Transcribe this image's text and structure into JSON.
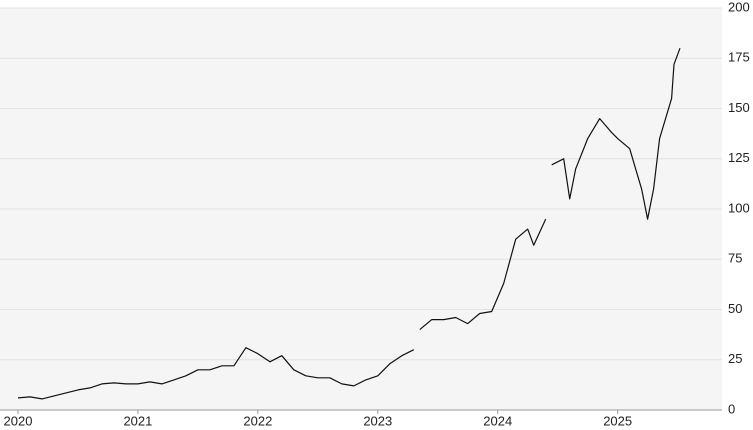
{
  "chart_data": {
    "type": "line",
    "x": [
      2020.0,
      2020.1,
      2020.2,
      2020.3,
      2020.4,
      2020.5,
      2020.6,
      2020.7,
      2020.8,
      2020.9,
      2021.0,
      2021.1,
      2021.2,
      2021.3,
      2021.4,
      2021.5,
      2021.6,
      2021.7,
      2021.8,
      2021.9,
      2022.0,
      2022.1,
      2022.2,
      2022.3,
      2022.4,
      2022.5,
      2022.6,
      2022.7,
      2022.8,
      2022.9,
      2023.0,
      2023.1,
      2023.2,
      2023.3,
      2023.32,
      2023.35,
      2023.45,
      2023.55,
      2023.65,
      2023.75,
      2023.85,
      2023.95,
      2024.05,
      2024.15,
      2024.25,
      2024.3,
      2024.4,
      2024.42,
      2024.45,
      2024.55,
      2024.6,
      2024.65,
      2024.75,
      2024.85,
      2024.95,
      2025.0,
      2025.1,
      2025.15,
      2025.2,
      2025.25,
      2025.3,
      2025.35,
      2025.45,
      2025.47,
      2025.52
    ],
    "series": [
      {
        "color": "#111111",
        "values": [
          6,
          6.5,
          5.5,
          7,
          8.5,
          10,
          11,
          13,
          13.5,
          13,
          13,
          14,
          13,
          15,
          17,
          20,
          20,
          22,
          22,
          31,
          28,
          24,
          27,
          20,
          17,
          16,
          16,
          13,
          12,
          15,
          17,
          23,
          27,
          30,
          null,
          40,
          45,
          45,
          46,
          43,
          48,
          49,
          63,
          85,
          90,
          82,
          95,
          null,
          122,
          125,
          105,
          120,
          135,
          145,
          138,
          135,
          130,
          120,
          110,
          95,
          110,
          135,
          155,
          172,
          180
        ]
      }
    ],
    "xlim": [
      2019.85,
      2025.87
    ],
    "xticks": [
      2020,
      2021,
      2022,
      2023,
      2024,
      2025
    ],
    "ylim": [
      0,
      200
    ],
    "yticks": [
      0,
      25,
      50,
      75,
      100,
      125,
      150,
      175,
      200
    ],
    "grid": true
  }
}
